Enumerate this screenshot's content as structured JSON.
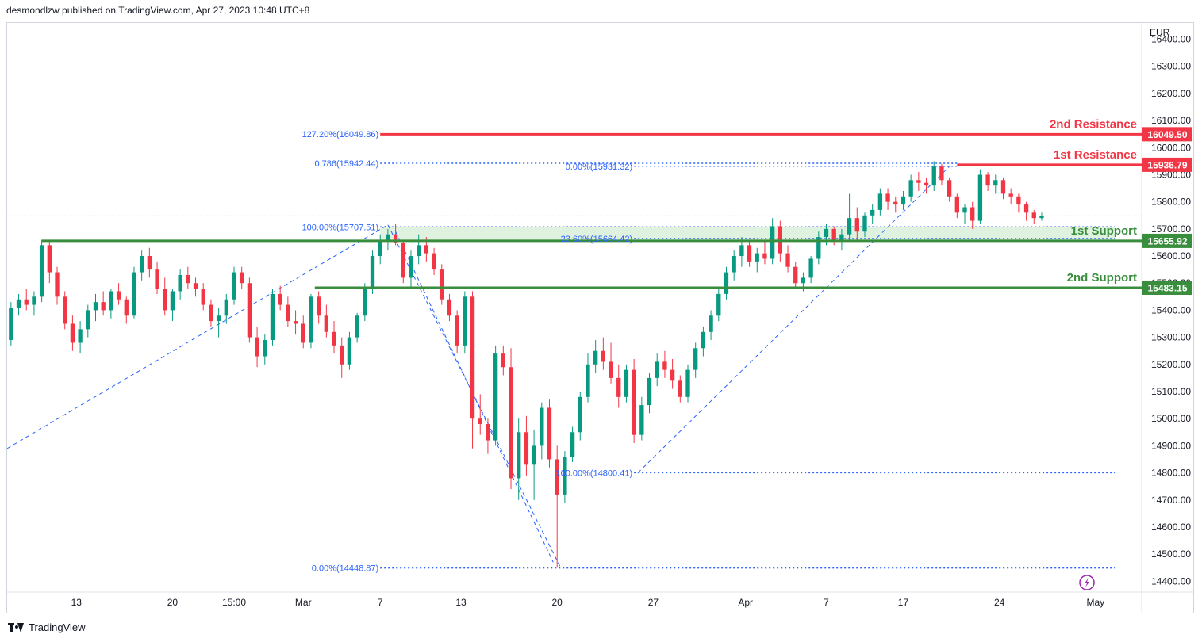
{
  "header": {
    "text": "desmondlzw published on TradingView.com, Apr 27, 2023 10:48 UTC+8"
  },
  "footer": {
    "brand": "TradingView"
  },
  "chart_data": {
    "type": "candlestick",
    "currency_label": "EUR",
    "y_range": [
      14360,
      16460
    ],
    "y_ticks": [
      16400,
      16300,
      16200,
      16100,
      16000,
      15900,
      15800,
      15700,
      15600,
      15500,
      15400,
      15300,
      15200,
      15100,
      15000,
      14900,
      14800,
      14700,
      14600,
      14500,
      14400
    ],
    "y_tick_labels": [
      "16400.00",
      "16300.00",
      "16200.00",
      "16100.00",
      "16000.00",
      "15900.00",
      "15800.00",
      "15700.00",
      "15600.00",
      "15500.00",
      "15400.00",
      "15300.00",
      "15200.00",
      "15100.00",
      "15000.00",
      "14900.00",
      "14800.00",
      "14700.00",
      "14600.00",
      "14500.00",
      "14400.00"
    ],
    "x_range": [
      -0.5,
      147
    ],
    "x_ticks": [
      {
        "label": "13",
        "index": 8.5
      },
      {
        "label": "20",
        "index": 21
      },
      {
        "label": "15:00",
        "index": 29
      },
      {
        "label": "Mar",
        "index": 38
      },
      {
        "label": "7",
        "index": 48
      },
      {
        "label": "13",
        "index": 58.5
      },
      {
        "label": "20",
        "index": 71
      },
      {
        "label": "27",
        "index": 83.5
      },
      {
        "label": "Apr",
        "index": 95.5
      },
      {
        "label": "7",
        "index": 106
      },
      {
        "label": "17",
        "index": 116
      },
      {
        "label": "24",
        "index": 128.5
      },
      {
        "label": "May",
        "index": 141
      }
    ],
    "levels": [
      {
        "name": "2nd Resistance",
        "value": 16049.5,
        "value_label": "16049.50",
        "color": "#f23645",
        "start_index": 48
      },
      {
        "name": "1st Resistance",
        "value": 15936.79,
        "value_label": "15936.79",
        "color": "#f23645",
        "start_index": 123
      },
      {
        "name": "1st Support",
        "value": 15655.92,
        "value_label": "15655.92",
        "color": "#388e3c",
        "start_index": 4
      },
      {
        "name": "2nd Support",
        "value": 15483.15,
        "value_label": "15483.15",
        "color": "#388e3c",
        "start_index": 39.5
      }
    ],
    "support_zone": {
      "from": 15655.92,
      "to": 15707.51,
      "start_index": 48
    },
    "fib_labels": [
      {
        "text": "127.20%(16049.86)",
        "value": 16049.86,
        "index": 48
      },
      {
        "text": "0.786(15942.44)",
        "value": 15942.44,
        "index": 48
      },
      {
        "text": "0.00%(15931.32)",
        "value": 15931.32,
        "index": 81
      },
      {
        "text": "100.00%(15707.51)",
        "value": 15707.51,
        "index": 48
      },
      {
        "text": "23.60%(15664.42)",
        "value": 15664.42,
        "index": 81
      },
      {
        "text": "100.00%(14800.41)",
        "value": 14800.41,
        "index": 81
      },
      {
        "text": "0.00%(14448.87)",
        "value": 14448.87,
        "index": 48
      }
    ],
    "trend_lines": [
      {
        "from": [
          -0.5,
          14890
        ],
        "to": [
          49,
          15715
        ]
      },
      {
        "from": [
          49,
          15715
        ],
        "to": [
          71.5,
          14448
        ]
      },
      {
        "from": [
          50,
          15690
        ],
        "to": [
          70.5,
          14470
        ]
      },
      {
        "from": [
          81.5,
          14800
        ],
        "to": [
          122,
          15930
        ]
      }
    ],
    "dotted_lines": [
      {
        "value": 15942.44,
        "from_index": 48,
        "to_index": 123
      },
      {
        "value": 15931.32,
        "from_index": 81,
        "to_index": 123
      },
      {
        "value": 15707.51,
        "from_index": 48,
        "to_index": 143.5
      },
      {
        "value": 15664.42,
        "from_index": 81,
        "to_index": 143.5
      },
      {
        "value": 14800.41,
        "from_index": 81,
        "to_index": 143.5
      },
      {
        "value": 14448.87,
        "from_index": 48,
        "to_index": 143.5
      }
    ],
    "current_price": 15748,
    "colors": {
      "up": "#089981",
      "down": "#f23645",
      "fib": "#2962ff"
    },
    "candles": [
      [
        15290,
        15430,
        15270,
        15410
      ],
      [
        15410,
        15460,
        15380,
        15440
      ],
      [
        15440,
        15480,
        15400,
        15420
      ],
      [
        15420,
        15470,
        15380,
        15450
      ],
      [
        15450,
        15660,
        15430,
        15640
      ],
      [
        15640,
        15660,
        15500,
        15540
      ],
      [
        15540,
        15560,
        15420,
        15450
      ],
      [
        15450,
        15470,
        15330,
        15350
      ],
      [
        15350,
        15380,
        15250,
        15280
      ],
      [
        15280,
        15360,
        15240,
        15330
      ],
      [
        15330,
        15420,
        15300,
        15400
      ],
      [
        15400,
        15460,
        15360,
        15430
      ],
      [
        15430,
        15470,
        15380,
        15400
      ],
      [
        15400,
        15480,
        15370,
        15470
      ],
      [
        15470,
        15500,
        15420,
        15440
      ],
      [
        15440,
        15450,
        15350,
        15380
      ],
      [
        15380,
        15560,
        15370,
        15540
      ],
      [
        15540,
        15620,
        15510,
        15600
      ],
      [
        15600,
        15630,
        15520,
        15550
      ],
      [
        15550,
        15580,
        15460,
        15480
      ],
      [
        15480,
        15520,
        15380,
        15400
      ],
      [
        15400,
        15480,
        15360,
        15470
      ],
      [
        15470,
        15550,
        15440,
        15530
      ],
      [
        15530,
        15560,
        15480,
        15500
      ],
      [
        15500,
        15520,
        15450,
        15480
      ],
      [
        15480,
        15500,
        15400,
        15420
      ],
      [
        15420,
        15440,
        15340,
        15360
      ],
      [
        15360,
        15410,
        15300,
        15380
      ],
      [
        15380,
        15460,
        15350,
        15440
      ],
      [
        15440,
        15560,
        15420,
        15540
      ],
      [
        15540,
        15560,
        15480,
        15500
      ],
      [
        15500,
        15520,
        15280,
        15300
      ],
      [
        15300,
        15340,
        15190,
        15230
      ],
      [
        15230,
        15310,
        15200,
        15290
      ],
      [
        15290,
        15480,
        15270,
        15460
      ],
      [
        15460,
        15490,
        15400,
        15420
      ],
      [
        15420,
        15450,
        15340,
        15360
      ],
      [
        15360,
        15400,
        15310,
        15350
      ],
      [
        15350,
        15380,
        15260,
        15280
      ],
      [
        15280,
        15460,
        15260,
        15450
      ],
      [
        15450,
        15470,
        15350,
        15380
      ],
      [
        15380,
        15420,
        15300,
        15320
      ],
      [
        15320,
        15360,
        15240,
        15270
      ],
      [
        15270,
        15300,
        15150,
        15200
      ],
      [
        15200,
        15320,
        15180,
        15300
      ],
      [
        15300,
        15390,
        15280,
        15380
      ],
      [
        15380,
        15500,
        15360,
        15480
      ],
      [
        15480,
        15620,
        15460,
        15600
      ],
      [
        15600,
        15680,
        15570,
        15660
      ],
      [
        15660,
        15700,
        15620,
        15680
      ],
      [
        15680,
        15720,
        15640,
        15650
      ],
      [
        15650,
        15660,
        15500,
        15520
      ],
      [
        15520,
        15620,
        15480,
        15600
      ],
      [
        15600,
        15680,
        15570,
        15640
      ],
      [
        15640,
        15670,
        15580,
        15610
      ],
      [
        15610,
        15630,
        15530,
        15550
      ],
      [
        15550,
        15570,
        15420,
        15440
      ],
      [
        15440,
        15460,
        15360,
        15380
      ],
      [
        15380,
        15400,
        15240,
        15270
      ],
      [
        15270,
        15470,
        15240,
        15450
      ],
      [
        15450,
        15470,
        14890,
        15000
      ],
      [
        15000,
        15090,
        14940,
        14980
      ],
      [
        14980,
        15000,
        14870,
        14920
      ],
      [
        14920,
        15270,
        14900,
        15240
      ],
      [
        15240,
        15270,
        15160,
        15190
      ],
      [
        15190,
        15260,
        14740,
        14780
      ],
      [
        14780,
        15000,
        14700,
        14950
      ],
      [
        14950,
        15010,
        14790,
        14830
      ],
      [
        14830,
        14960,
        14700,
        14900
      ],
      [
        14900,
        15060,
        14850,
        15040
      ],
      [
        15040,
        15070,
        14820,
        14850
      ],
      [
        14850,
        14900,
        14450,
        14720
      ],
      [
        14720,
        14880,
        14690,
        14860
      ],
      [
        14860,
        14970,
        14840,
        14950
      ],
      [
        14950,
        15100,
        14920,
        15080
      ],
      [
        15080,
        15240,
        15060,
        15200
      ],
      [
        15200,
        15290,
        15170,
        15250
      ],
      [
        15250,
        15300,
        15180,
        15210
      ],
      [
        15210,
        15280,
        15130,
        15150
      ],
      [
        15150,
        15200,
        15040,
        15080
      ],
      [
        15080,
        15200,
        15060,
        15180
      ],
      [
        15180,
        15220,
        14910,
        14940
      ],
      [
        14940,
        15080,
        14920,
        15050
      ],
      [
        15050,
        15170,
        15020,
        15150
      ],
      [
        15150,
        15240,
        15120,
        15210
      ],
      [
        15210,
        15250,
        15150,
        15180
      ],
      [
        15180,
        15220,
        15110,
        15140
      ],
      [
        15140,
        15160,
        15060,
        15080
      ],
      [
        15080,
        15200,
        15060,
        15180
      ],
      [
        15180,
        15280,
        15150,
        15260
      ],
      [
        15260,
        15340,
        15230,
        15320
      ],
      [
        15320,
        15400,
        15290,
        15380
      ],
      [
        15380,
        15480,
        15360,
        15460
      ],
      [
        15460,
        15560,
        15440,
        15540
      ],
      [
        15540,
        15620,
        15510,
        15600
      ],
      [
        15600,
        15670,
        15560,
        15640
      ],
      [
        15640,
        15660,
        15560,
        15580
      ],
      [
        15580,
        15630,
        15540,
        15610
      ],
      [
        15610,
        15660,
        15570,
        15590
      ],
      [
        15590,
        15740,
        15570,
        15710
      ],
      [
        15710,
        15730,
        15580,
        15610
      ],
      [
        15610,
        15640,
        15540,
        15560
      ],
      [
        15560,
        15580,
        15480,
        15500
      ],
      [
        15500,
        15540,
        15470,
        15520
      ],
      [
        15520,
        15600,
        15500,
        15590
      ],
      [
        15590,
        15690,
        15570,
        15670
      ],
      [
        15670,
        15720,
        15640,
        15700
      ],
      [
        15700,
        15710,
        15640,
        15660
      ],
      [
        15660,
        15700,
        15620,
        15680
      ],
      [
        15680,
        15830,
        15660,
        15740
      ],
      [
        15740,
        15780,
        15660,
        15690
      ],
      [
        15690,
        15760,
        15670,
        15750
      ],
      [
        15750,
        15790,
        15720,
        15770
      ],
      [
        15770,
        15850,
        15750,
        15830
      ],
      [
        15830,
        15850,
        15770,
        15800
      ],
      [
        15800,
        15820,
        15760,
        15790
      ],
      [
        15790,
        15840,
        15770,
        15820
      ],
      [
        15820,
        15900,
        15800,
        15880
      ],
      [
        15880,
        15910,
        15840,
        15870
      ],
      [
        15870,
        15890,
        15830,
        15860
      ],
      [
        15860,
        15950,
        15840,
        15930
      ],
      [
        15930,
        15940,
        15860,
        15880
      ],
      [
        15880,
        15890,
        15800,
        15820
      ],
      [
        15820,
        15830,
        15740,
        15760
      ],
      [
        15760,
        15790,
        15720,
        15780
      ],
      [
        15780,
        15800,
        15700,
        15730
      ],
      [
        15730,
        15920,
        15720,
        15900
      ],
      [
        15900,
        15910,
        15840,
        15860
      ],
      [
        15860,
        15900,
        15830,
        15880
      ],
      [
        15880,
        15890,
        15810,
        15830
      ],
      [
        15830,
        15850,
        15790,
        15820
      ],
      [
        15820,
        15830,
        15760,
        15790
      ],
      [
        15790,
        15800,
        15730,
        15760
      ],
      [
        15760,
        15770,
        15720,
        15740
      ],
      [
        15740,
        15760,
        15730,
        15748
      ]
    ]
  }
}
